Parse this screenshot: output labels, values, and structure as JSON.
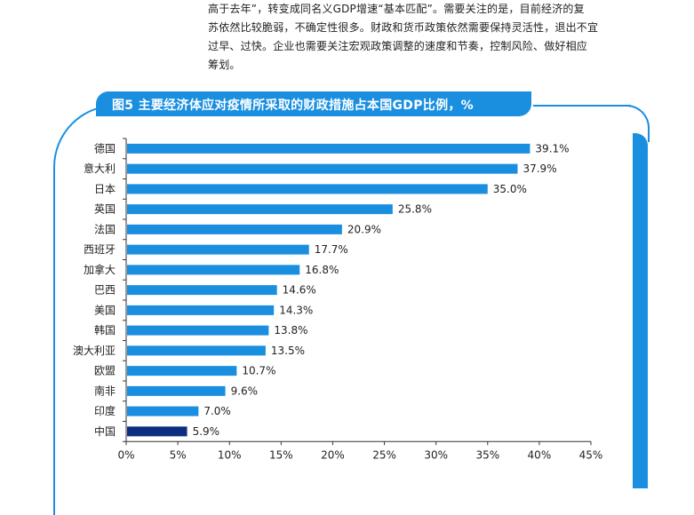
{
  "paragraph": {
    "lines": [
      "高于去年”，转变成同名义GDP增速“基本匹配”。需要关注的是，目前经济的复",
      "苏依然比较脆弱，不确定性很多。财政和货币政策依然需要保持灵活性，退出不宜",
      "过早、过快。企业也需要关注宏观政策调整的速度和节奏，控制风险、做好相应",
      "筹划。"
    ]
  },
  "colors": {
    "accent": "#1a8fe0",
    "bar": "#1a8fe0",
    "highlight_bar": "#0b2f7e"
  },
  "chart_data": {
    "type": "bar",
    "orientation": "horizontal",
    "title": "图5  主要经济体应对疫情所采取的财政措施占本国GDP比例，%",
    "categories": [
      "德国",
      "意大利",
      "日本",
      "英国",
      "法国",
      "西班牙",
      "加拿大",
      "巴西",
      "美国",
      "韩国",
      "澳大利亚",
      "欧盟",
      "南非",
      "印度",
      "中国"
    ],
    "values": [
      39.1,
      37.9,
      35.0,
      25.8,
      20.9,
      17.7,
      16.8,
      14.6,
      14.3,
      13.8,
      13.5,
      10.7,
      9.6,
      7.0,
      5.9
    ],
    "value_labels": [
      "39.1%",
      "37.9%",
      "35.0%",
      "25.8%",
      "20.9%",
      "17.7%",
      "16.8%",
      "14.6%",
      "14.3%",
      "13.8%",
      "13.5%",
      "10.7%",
      "9.6%",
      "7.0%",
      "5.9%"
    ],
    "highlight": "中国",
    "xlim": [
      0,
      45
    ],
    "xticks": [
      "0%",
      "5%",
      "10%",
      "15%",
      "20%",
      "25%",
      "30%",
      "35%",
      "40%",
      "45%"
    ],
    "grid": false
  }
}
